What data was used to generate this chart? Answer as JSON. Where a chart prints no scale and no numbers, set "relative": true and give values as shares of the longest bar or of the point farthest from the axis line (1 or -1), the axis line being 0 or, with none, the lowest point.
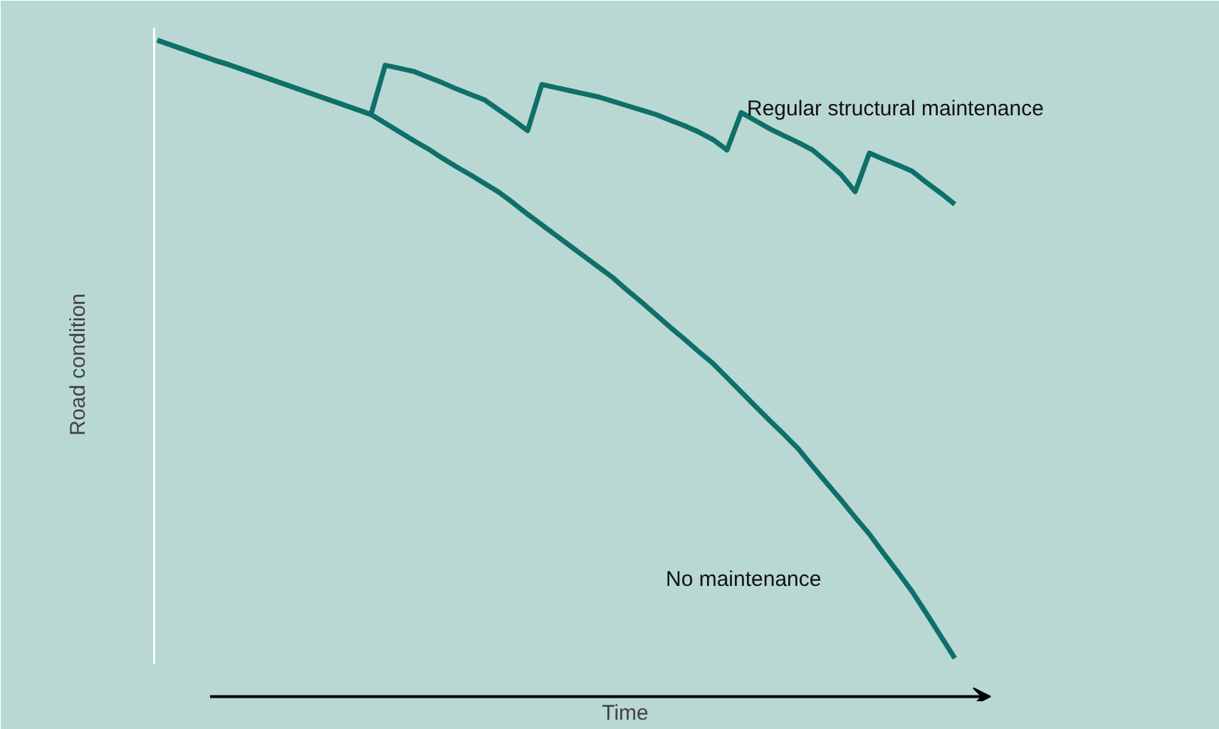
{
  "chart_data": {
    "type": "line",
    "relative": true,
    "xlabel": "Time",
    "ylabel": "Road condition",
    "categories": [
      null,
      null,
      null,
      null,
      null,
      null,
      null,
      null,
      null,
      null,
      null,
      null,
      null,
      null,
      null,
      null,
      null,
      null,
      null,
      null,
      null,
      null,
      null,
      null,
      null,
      null,
      null,
      null,
      null,
      null,
      null,
      null,
      null,
      null,
      null,
      null,
      null,
      null,
      null,
      null,
      null,
      null,
      null,
      null,
      null,
      null,
      null,
      null,
      null,
      null,
      null,
      null,
      null,
      null,
      null,
      null,
      null
    ],
    "series": [
      {
        "name": "No maintenance",
        "color": "#0f6f69",
        "values": [
          1.0,
          0.992,
          0.984,
          0.976,
          0.968,
          0.961,
          0.953,
          0.945,
          0.937,
          0.929,
          0.921,
          0.913,
          0.905,
          0.897,
          0.889,
          0.881,
          0.867,
          0.853,
          0.839,
          0.826,
          0.811,
          0.797,
          0.784,
          0.77,
          0.756,
          0.739,
          0.721,
          0.704,
          0.687,
          0.67,
          0.653,
          0.636,
          0.619,
          0.599,
          0.58,
          0.56,
          0.54,
          0.521,
          0.501,
          0.482,
          0.459,
          0.436,
          0.413,
          0.39,
          0.368,
          0.345,
          0.317,
          0.29,
          0.263,
          0.235,
          0.208,
          0.177,
          0.147,
          0.116,
          0.081,
          0.045,
          0.009
        ]
      },
      {
        "name": "Regular structural maintenance",
        "color": "#0f6f69",
        "values": [
          1.0,
          0.992,
          0.984,
          0.976,
          0.968,
          0.961,
          0.953,
          0.945,
          0.937,
          0.929,
          0.921,
          0.913,
          0.905,
          0.897,
          0.889,
          0.881,
          0.96,
          0.955,
          0.95,
          0.941,
          0.932,
          0.922,
          0.913,
          0.904,
          0.888,
          0.872,
          0.855,
          0.929,
          0.924,
          0.919,
          0.914,
          0.909,
          0.902,
          0.895,
          0.888,
          0.881,
          0.872,
          0.863,
          0.853,
          0.841,
          0.824,
          0.884,
          0.871,
          0.858,
          0.847,
          0.836,
          0.824,
          0.805,
          0.785,
          0.757,
          0.819,
          0.809,
          0.8,
          0.79,
          0.772,
          0.755,
          0.737
        ]
      }
    ]
  }
}
